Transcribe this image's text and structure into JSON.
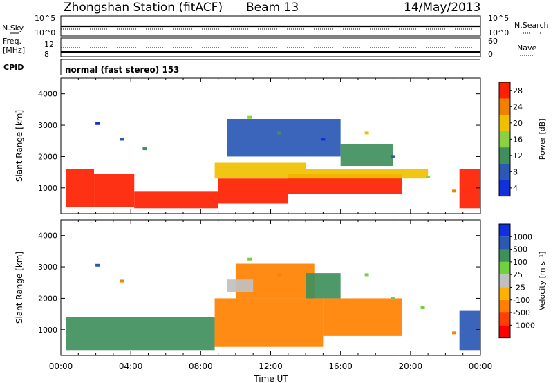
{
  "header": {
    "title": "Zhongshan Station (fitACF)",
    "beam": "Beam 13",
    "date": "14/May/2013"
  },
  "status_panels": {
    "nsky_label": "N.Sky",
    "nsky_ticks": [
      "10^5",
      "10^0"
    ],
    "nsearch_label": "N.Search",
    "nsearch_ticks": [
      "10^5",
      "10^0"
    ],
    "freq_label_1": "Freq.",
    "freq_label_2": "[MHz]",
    "freq_ticks": [
      "12",
      "8"
    ],
    "nave_label": "Nave",
    "nave_ticks": [
      "60",
      "0"
    ],
    "cpid_label": "CPID",
    "cpid_text": "normal (fast stereo) 153"
  },
  "chart_data": [
    {
      "type": "heatmap",
      "name": "power",
      "ylabel": "Slant Range [km]",
      "yticks": [
        1000,
        2000,
        3000,
        4000
      ],
      "ylim": [
        180,
        4500
      ],
      "xlim": [
        0,
        24
      ],
      "colorbar_label": "Power [dB]",
      "colorbar_ticks": [
        "4",
        "8",
        "12",
        "16",
        "20",
        "24",
        "28"
      ],
      "colorbar_colors": [
        "#1030e0",
        "#2a58b4",
        "#3f8f5c",
        "#8ad040",
        "#f0c000",
        "#f08000",
        "#ff2000"
      ],
      "bands": [
        {
          "t0": 0.3,
          "t1": 1.9,
          "r0": 400,
          "r1": 1600,
          "level": 6
        },
        {
          "t0": 1.9,
          "t1": 4.2,
          "r0": 400,
          "r1": 1450,
          "level": 6
        },
        {
          "t0": 4.2,
          "t1": 9.0,
          "r0": 350,
          "r1": 900,
          "level": 6
        },
        {
          "t0": 9.0,
          "t1": 13.0,
          "r0": 500,
          "r1": 1300,
          "level": 6
        },
        {
          "t0": 13.0,
          "t1": 19.5,
          "r0": 800,
          "r1": 1450,
          "level": 6
        },
        {
          "t0": 8.8,
          "t1": 14.0,
          "r0": 1300,
          "r1": 1800,
          "level": 4
        },
        {
          "t0": 14.0,
          "t1": 21.0,
          "r0": 1300,
          "r1": 1600,
          "level": 4
        },
        {
          "t0": 9.5,
          "t1": 16.0,
          "r0": 2000,
          "r1": 3200,
          "level": 1
        },
        {
          "t0": 16.0,
          "t1": 19.0,
          "r0": 1700,
          "r1": 2400,
          "level": 2
        },
        {
          "t0": 22.8,
          "t1": 24.0,
          "r0": 350,
          "r1": 1600,
          "level": 6
        }
      ],
      "scatter": [
        {
          "t": 2.1,
          "r": 3050,
          "level": 0
        },
        {
          "t": 3.5,
          "r": 2550,
          "level": 1
        },
        {
          "t": 4.8,
          "r": 2250,
          "level": 2
        },
        {
          "t": 10.8,
          "r": 3250,
          "level": 3
        },
        {
          "t": 12.5,
          "r": 2750,
          "level": 2
        },
        {
          "t": 15.0,
          "r": 2550,
          "level": 0
        },
        {
          "t": 17.5,
          "r": 2750,
          "level": 4
        },
        {
          "t": 19.0,
          "r": 2000,
          "level": 1
        },
        {
          "t": 21.0,
          "r": 1350,
          "level": 3
        },
        {
          "t": 22.5,
          "r": 900,
          "level": 5
        }
      ]
    },
    {
      "type": "heatmap",
      "name": "velocity",
      "ylabel": "Slant Range [km]",
      "xlabel": "Time UT",
      "xticks": [
        "00:00",
        "04:00",
        "08:00",
        "12:00",
        "16:00",
        "20:00",
        "00:00"
      ],
      "yticks": [
        1000,
        2000,
        3000,
        4000
      ],
      "ylim": [
        180,
        4500
      ],
      "xlim": [
        0,
        24
      ],
      "colorbar_label": "Velocity [m s⁻¹]",
      "colorbar_ticks": [
        "-1000",
        "-500",
        "-100",
        "-25",
        "25",
        "100",
        "500",
        "1000"
      ],
      "colorbar_colors": [
        "#ff0000",
        "#ff4000",
        "#ff8000",
        "#ffb000",
        "#c0c0c0",
        "#70d040",
        "#3f8f5c",
        "#2a58b4",
        "#1030e0"
      ],
      "bands": [
        {
          "t0": 0.3,
          "t1": 8.8,
          "r0": 350,
          "r1": 1400,
          "level": 6
        },
        {
          "t0": 8.8,
          "t1": 15.0,
          "r0": 450,
          "r1": 2000,
          "level": 2
        },
        {
          "t0": 15.0,
          "t1": 19.5,
          "r0": 800,
          "r1": 2000,
          "level": 2
        },
        {
          "t0": 10.0,
          "t1": 14.5,
          "r0": 2000,
          "r1": 3100,
          "level": 2
        },
        {
          "t0": 9.5,
          "t1": 11.0,
          "r0": 2200,
          "r1": 2600,
          "level": 4
        },
        {
          "t0": 14.0,
          "t1": 16.0,
          "r0": 2000,
          "r1": 2800,
          "level": 6
        },
        {
          "t0": 22.8,
          "t1": 24.0,
          "r0": 350,
          "r1": 1600,
          "level": 7
        }
      ],
      "scatter": [
        {
          "t": 2.1,
          "r": 3050,
          "level": 7
        },
        {
          "t": 3.5,
          "r": 2550,
          "level": 2
        },
        {
          "t": 10.8,
          "r": 3250,
          "level": 5
        },
        {
          "t": 12.5,
          "r": 2750,
          "level": 2
        },
        {
          "t": 17.5,
          "r": 2750,
          "level": 5
        },
        {
          "t": 19.0,
          "r": 2000,
          "level": 5
        },
        {
          "t": 20.7,
          "r": 1700,
          "level": 5
        },
        {
          "t": 22.5,
          "r": 900,
          "level": 2
        }
      ]
    }
  ]
}
